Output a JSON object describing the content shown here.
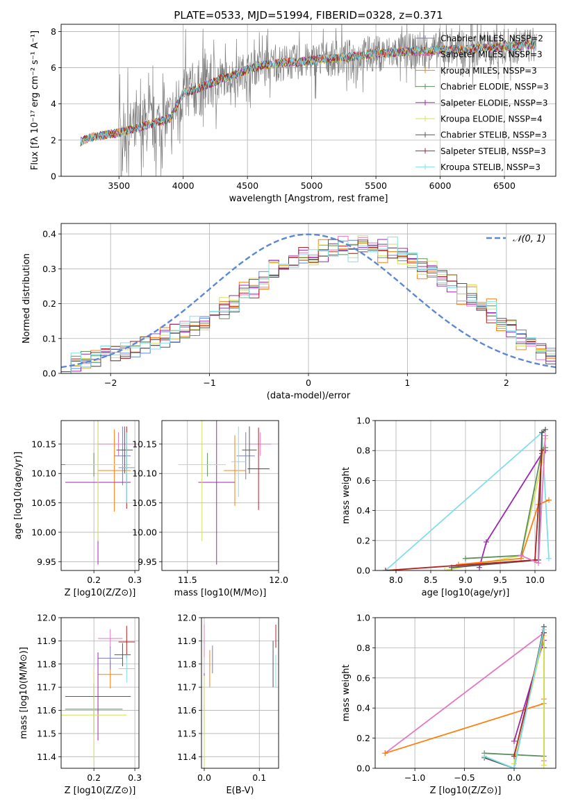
{
  "chart_data": [
    {
      "id": "spectrum",
      "type": "line",
      "title": "PLATE=0533, MJD=51994, FIBERID=0328, z=0.371",
      "xlabel": "wavelength [Angstrom, rest frame]",
      "ylabel": "Flux [fλ 10⁻¹⁷ erg cm⁻² s⁻¹ A⁻¹]",
      "xlim": [
        3050,
        6900
      ],
      "ylim": [
        0,
        8.4
      ],
      "xticks": [
        3500,
        4000,
        4500,
        5000,
        5500,
        6000,
        6500
      ],
      "yticks": [
        0,
        2,
        4,
        6,
        8
      ],
      "legend_position": "top-right",
      "legend": [
        {
          "label": "Chabrier MILES, NSSP=2",
          "color": "#7b7baf"
        },
        {
          "label": "Salpeter MILES, NSSP=3",
          "color": "#e377c2"
        },
        {
          "label": "Kroupa MILES, NSSP=3",
          "color": "#ff7f0e"
        },
        {
          "label": "Chabrier ELODIE, NSSP=3",
          "color": "#5b8f5b"
        },
        {
          "label": "Salpeter ELODIE, NSSP=3",
          "color": "#9b27b0"
        },
        {
          "label": "Kroupa ELODIE, NSSP=4",
          "color": "#d4e157"
        },
        {
          "label": "Chabrier STELIB, NSSP=3",
          "color": "#555555"
        },
        {
          "label": "Salpeter STELIB, NSSP=3",
          "color": "#b22222"
        },
        {
          "label": "Kroupa STELIB, NSSP=3",
          "color": "#80deea"
        }
      ],
      "data_color": "#808080",
      "x": [
        3200,
        3300,
        3500,
        3700,
        3900,
        4000,
        4100,
        4200,
        4300,
        4400,
        4500,
        4600,
        4700,
        4800,
        4900,
        5000,
        5100,
        5200,
        5300,
        5400,
        5500,
        5600,
        5700,
        5800,
        5900,
        6000,
        6100,
        6200,
        6300,
        6400,
        6500,
        6600,
        6750
      ],
      "model_y": [
        1.9,
        2.2,
        2.4,
        2.8,
        3.2,
        4.6,
        4.8,
        5.1,
        5.4,
        5.6,
        5.9,
        6.1,
        6.2,
        6.3,
        6.3,
        6.4,
        6.5,
        6.5,
        6.6,
        6.7,
        6.8,
        6.8,
        6.9,
        6.9,
        6.9,
        7.0,
        7.0,
        7.0,
        7.1,
        7.1,
        7.2,
        7.2,
        7.3
      ]
    },
    {
      "id": "residuals",
      "type": "line",
      "xlabel": "(data-model)/error",
      "ylabel": "Normed distribution",
      "xlim": [
        -2.5,
        2.5
      ],
      "ylim": [
        0,
        0.43
      ],
      "xticks": [
        -2,
        -1,
        0,
        1,
        2
      ],
      "yticks": [
        0.0,
        0.1,
        0.2,
        0.3,
        0.4
      ],
      "legend_position": "top-right",
      "legend": [
        {
          "label": "𝒩(0, 1)",
          "color": "#5b87d6"
        }
      ],
      "bin_edges_start": -2.5,
      "bin_width": 0.1,
      "hist": [
        [
          0.03,
          0.035,
          0.04,
          0.045,
          0.05,
          0.055,
          0.06,
          0.07,
          0.08,
          0.09,
          0.1,
          0.11,
          0.12,
          0.13,
          0.15,
          0.17,
          0.18,
          0.2,
          0.22,
          0.25,
          0.27,
          0.29,
          0.31,
          0.32,
          0.33,
          0.34,
          0.35,
          0.36,
          0.36,
          0.37,
          0.37,
          0.36,
          0.35,
          0.34,
          0.33,
          0.32,
          0.31,
          0.3,
          0.28,
          0.26,
          0.24,
          0.22,
          0.2,
          0.18,
          0.15,
          0.13,
          0.11,
          0.09,
          0.07,
          0.05
        ],
        [
          0.025,
          0.03,
          0.04,
          0.045,
          0.05,
          0.06,
          0.065,
          0.075,
          0.085,
          0.095,
          0.1,
          0.12,
          0.13,
          0.14,
          0.16,
          0.17,
          0.19,
          0.21,
          0.23,
          0.24,
          0.27,
          0.3,
          0.31,
          0.33,
          0.34,
          0.35,
          0.34,
          0.36,
          0.37,
          0.36,
          0.38,
          0.37,
          0.36,
          0.35,
          0.34,
          0.33,
          0.3,
          0.29,
          0.27,
          0.25,
          0.23,
          0.21,
          0.19,
          0.17,
          0.14,
          0.12,
          0.1,
          0.08,
          0.06,
          0.05
        ],
        [
          0.02,
          0.035,
          0.035,
          0.05,
          0.055,
          0.05,
          0.07,
          0.08,
          0.09,
          0.09,
          0.11,
          0.11,
          0.13,
          0.15,
          0.14,
          0.18,
          0.2,
          0.19,
          0.24,
          0.26,
          0.26,
          0.31,
          0.32,
          0.31,
          0.35,
          0.33,
          0.36,
          0.35,
          0.38,
          0.34,
          0.39,
          0.36,
          0.34,
          0.37,
          0.32,
          0.33,
          0.29,
          0.31,
          0.26,
          0.27,
          0.22,
          0.23,
          0.18,
          0.19,
          0.13,
          0.14,
          0.09,
          0.09,
          0.06,
          0.05
        ]
      ],
      "gaussian": {
        "mu": 0,
        "sigma": 1
      }
    },
    {
      "id": "age-vs-Z",
      "type": "scatter",
      "xlabel": "Z [log10(Z/Z⊙)]",
      "ylabel": "age  [log10(age/yr)]",
      "xlim": [
        0.12,
        0.31
      ],
      "ylim": [
        9.935,
        10.19
      ],
      "xticks": [
        0.2,
        0.3
      ],
      "yticks": [
        9.95,
        10.0,
        10.05,
        10.1,
        10.15
      ],
      "points": [
        {
          "x": 0.26,
          "y": 10.15,
          "xerr": 0.05,
          "yerr": 0.02,
          "color": "#e377c2"
        },
        {
          "x": 0.25,
          "y": 10.105,
          "xerr": 0.04,
          "yerr": 0.07,
          "color": "#ff7f0e"
        },
        {
          "x": 0.27,
          "y": 10.13,
          "xerr": 0.02,
          "yerr": 0.05,
          "color": "#7b7baf"
        },
        {
          "x": 0.2,
          "y": 10.115,
          "xerr": 0.08,
          "yerr": 0.02,
          "color": "#5b8f5b"
        },
        {
          "x": 0.21,
          "y": 10.085,
          "xerr": 0.08,
          "yerr": 0.14,
          "color": "#9b27b0"
        },
        {
          "x": 0.21,
          "y": 10.115,
          "xerr": 0.08,
          "yerr": 0.13,
          "color": "#d4e157"
        },
        {
          "x": 0.275,
          "y": 10.14,
          "xerr": 0.02,
          "yerr": 0.04,
          "color": "#555555"
        },
        {
          "x": 0.28,
          "y": 10.11,
          "xerr": 0.02,
          "yerr": 0.07,
          "color": "#b22222"
        },
        {
          "x": 0.28,
          "y": 10.11,
          "xerr": 0.02,
          "yerr": 0.06,
          "color": "#80deea"
        }
      ]
    },
    {
      "id": "age-vs-mass",
      "type": "scatter",
      "xlabel": "mass [log10(M/M⊙)]",
      "ylabel": "",
      "xlim": [
        11.36,
        12.0
      ],
      "ylim": [
        9.935,
        10.19
      ],
      "xticks": [
        11.5,
        12.0
      ],
      "yticks": [
        9.95,
        10.0,
        10.05,
        10.1,
        10.15
      ],
      "points": [
        {
          "x": 11.9,
          "y": 10.15,
          "xerr": 0.06,
          "yerr": 0.02,
          "color": "#e377c2"
        },
        {
          "x": 11.76,
          "y": 10.105,
          "xerr": 0.06,
          "yerr": 0.06,
          "color": "#ff7f0e"
        },
        {
          "x": 11.82,
          "y": 10.13,
          "xerr": 0.05,
          "yerr": 0.04,
          "color": "#7b7baf"
        },
        {
          "x": 11.61,
          "y": 10.115,
          "xerr": 0.1,
          "yerr": 0.02,
          "color": "#5b8f5b"
        },
        {
          "x": 11.66,
          "y": 10.085,
          "xerr": 0.1,
          "yerr": 0.14,
          "color": "#9b27b0"
        },
        {
          "x": 11.58,
          "y": 10.115,
          "xerr": 0.13,
          "yerr": 0.13,
          "color": "#d4e157"
        },
        {
          "x": 11.84,
          "y": 10.14,
          "xerr": 0.04,
          "yerr": 0.04,
          "color": "#555555"
        },
        {
          "x": 11.89,
          "y": 10.108,
          "xerr": 0.06,
          "yerr": 0.07,
          "color": "#b22222"
        },
        {
          "x": 11.78,
          "y": 10.12,
          "xerr": 0.04,
          "yerr": 0.06,
          "color": "#80deea"
        }
      ]
    },
    {
      "id": "mass-weight-vs-age",
      "type": "line",
      "xlabel": "age  [log10(age/yr)]",
      "ylabel": "mass weight",
      "xlim": [
        7.7,
        10.3
      ],
      "ylim": [
        0,
        1.0
      ],
      "xticks": [
        8.0,
        8.5,
        9.0,
        9.5,
        10.0
      ],
      "yticks": [
        0.0,
        0.2,
        0.4,
        0.6,
        0.8,
        1.0
      ],
      "series": [
        {
          "color": "#80deea",
          "x": [
            7.85,
            10.1,
            10.2
          ],
          "y": [
            0.0,
            0.92,
            0.08
          ]
        },
        {
          "color": "#9b27b0",
          "x": [
            9.2,
            9.3,
            10.1,
            10.15
          ],
          "y": [
            0.02,
            0.19,
            0.78,
            0.8
          ]
        },
        {
          "color": "#d4e157",
          "x": [
            8.7,
            9.8,
            10.1,
            10.15
          ],
          "y": [
            0.0,
            0.1,
            0.72,
            0.88
          ]
        },
        {
          "color": "#ff7f0e",
          "x": [
            8.9,
            9.8,
            10.05,
            10.2
          ],
          "y": [
            0.04,
            0.08,
            0.44,
            0.47
          ]
        },
        {
          "color": "#5b8f5b",
          "x": [
            9.0,
            9.8,
            10.1,
            10.15
          ],
          "y": [
            0.08,
            0.1,
            0.8,
            0.82
          ]
        },
        {
          "color": "#555555",
          "x": [
            8.8,
            10.05,
            10.1,
            10.15
          ],
          "y": [
            0.02,
            0.07,
            0.92,
            0.94
          ]
        },
        {
          "color": "#b22222",
          "x": [
            7.85,
            10.0,
            10.1
          ],
          "y": [
            0.0,
            0.07,
            0.8
          ]
        },
        {
          "color": "#e377c2",
          "x": [
            9.8,
            10.05,
            10.15
          ],
          "y": [
            0.1,
            0.05,
            0.9
          ]
        }
      ]
    },
    {
      "id": "mass-vs-Z",
      "type": "scatter",
      "xlabel": "Z [log10(Z/Z⊙)]",
      "ylabel": "mass [log10(M/M⊙)]",
      "xlim": [
        0.12,
        0.31
      ],
      "ylim": [
        11.35,
        12.0
      ],
      "xticks": [
        0.2,
        0.3
      ],
      "yticks": [
        11.4,
        11.5,
        11.6,
        11.7,
        11.8,
        11.9,
        12.0
      ],
      "points": [
        {
          "x": 0.24,
          "y": 11.91,
          "xerr": 0.03,
          "yerr": 0.04,
          "color": "#e377c2"
        },
        {
          "x": 0.24,
          "y": 11.755,
          "xerr": 0.03,
          "yerr": 0.06,
          "color": "#ff7f0e"
        },
        {
          "x": 0.24,
          "y": 11.825,
          "xerr": 0.03,
          "yerr": 0.05,
          "color": "#7b7baf"
        },
        {
          "x": 0.2,
          "y": 11.605,
          "xerr": 0.07,
          "yerr": 0.11,
          "color": "#5b8f5b"
        },
        {
          "x": 0.21,
          "y": 11.66,
          "xerr": 0.08,
          "yerr": 0.19,
          "color": "#9b27b0"
        },
        {
          "x": 0.2,
          "y": 11.58,
          "xerr": 0.08,
          "yerr": 0.2,
          "color": "#d4e157"
        },
        {
          "x": 0.27,
          "y": 11.84,
          "xerr": 0.02,
          "yerr": 0.05,
          "color": "#555555"
        },
        {
          "x": 0.28,
          "y": 11.895,
          "xerr": 0.02,
          "yerr": 0.07,
          "color": "#b22222"
        },
        {
          "x": 0.28,
          "y": 11.78,
          "xerr": 0.02,
          "yerr": 0.06,
          "color": "#80deea"
        }
      ]
    },
    {
      "id": "mass-vs-ebv",
      "type": "scatter",
      "xlabel": "E(B-V)",
      "ylabel": "",
      "xlim": [
        -0.005,
        0.135
      ],
      "ylim": [
        11.35,
        12.0
      ],
      "xticks": [
        0.0,
        0.1
      ],
      "yticks": [
        11.4,
        11.5,
        11.6,
        11.7,
        11.8,
        11.9,
        12.0
      ],
      "points": [
        {
          "x": 0.0,
          "y": 11.9,
          "xerr": 0,
          "yerr": 0.07,
          "color": "#e377c2"
        },
        {
          "x": 0.01,
          "y": 11.78,
          "xerr": 0,
          "yerr": 0.08,
          "color": "#ff7f0e"
        },
        {
          "x": 0.015,
          "y": 11.82,
          "xerr": 0,
          "yerr": 0.06,
          "color": "#7b7baf"
        },
        {
          "x": 0.0,
          "y": 11.6,
          "xerr": 0,
          "yerr": 0.1,
          "color": "#5b8f5b"
        },
        {
          "x": 0.0,
          "y": 11.66,
          "xerr": 0,
          "yerr": 0.1,
          "color": "#9b27b0"
        },
        {
          "x": 0.0,
          "y": 11.55,
          "xerr": 0,
          "yerr": 0.2,
          "color": "#d4e157"
        },
        {
          "x": 0.125,
          "y": 11.8,
          "xerr": 0,
          "yerr": 0.1,
          "color": "#555555"
        },
        {
          "x": 0.13,
          "y": 11.92,
          "xerr": 0,
          "yerr": 0.05,
          "color": "#b22222"
        },
        {
          "x": 0.13,
          "y": 11.77,
          "xerr": 0,
          "yerr": 0.07,
          "color": "#80deea"
        }
      ]
    },
    {
      "id": "mass-weight-vs-Z",
      "type": "line",
      "xlabel": "Z [log10(Z/Z⊙)]",
      "ylabel": "mass weight",
      "xlim": [
        -1.4,
        0.42
      ],
      "ylim": [
        0,
        1.0
      ],
      "xticks": [
        -1.0,
        -0.5,
        0.0
      ],
      "yticks": [
        0.0,
        0.2,
        0.4,
        0.6,
        0.8,
        1.0
      ],
      "series": [
        {
          "color": "#e377c2",
          "x": [
            -1.3,
            0.3,
            0.3
          ],
          "y": [
            0.1,
            0.9,
            0.05
          ]
        },
        {
          "color": "#ff7f0e",
          "x": [
            -1.3,
            0.3,
            0.3
          ],
          "y": [
            0.1,
            0.43,
            0.46
          ]
        },
        {
          "color": "#5b8f5b",
          "x": [
            -0.3,
            0.3,
            0.3
          ],
          "y": [
            0.1,
            0.08,
            0.8
          ]
        },
        {
          "color": "#9b27b0",
          "x": [
            0.0,
            0.3,
            0.3
          ],
          "y": [
            0.18,
            0.85,
            0.8
          ]
        },
        {
          "color": "#d4e157",
          "x": [
            0.0,
            0.3,
            0.3
          ],
          "y": [
            0.03,
            0.88,
            0.02
          ]
        },
        {
          "color": "#555555",
          "x": [
            -0.3,
            0.0,
            0.3,
            0.3
          ],
          "y": [
            0.07,
            0.0,
            0.94,
            0.9
          ]
        },
        {
          "color": "#b22222",
          "x": [
            0.0,
            0.3
          ],
          "y": [
            0.08,
            0.9
          ]
        },
        {
          "color": "#80deea",
          "x": [
            -0.3,
            0.0,
            0.3
          ],
          "y": [
            0.08,
            0.0,
            0.92
          ]
        }
      ]
    }
  ]
}
